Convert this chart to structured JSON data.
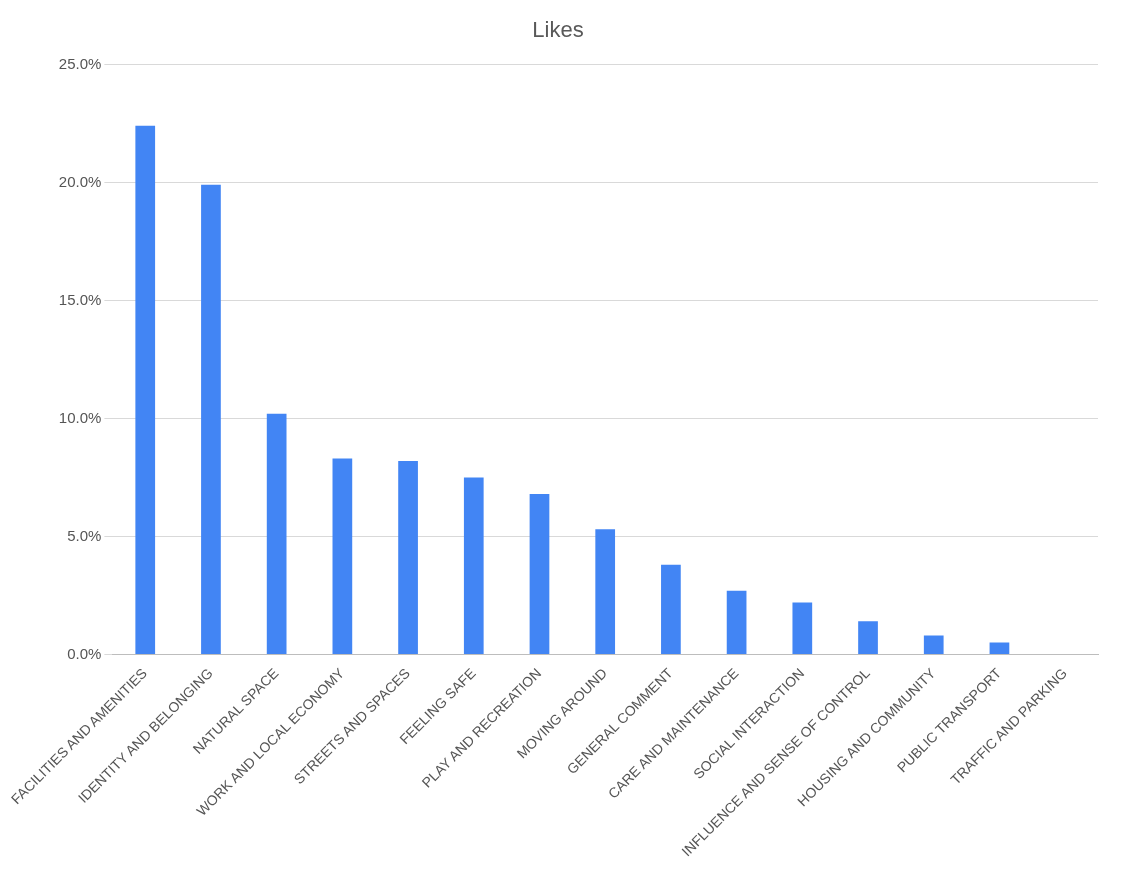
{
  "chart_data": {
    "type": "bar",
    "title": "Likes",
    "categories": [
      "FACILITIES AND AMENITIES",
      "IDENTITY AND BELONGING",
      "NATURAL SPACE",
      "WORK AND LOCAL ECONOMY",
      "STREETS AND SPACES",
      "FEELING SAFE",
      "PLAY AND RECREATION",
      "MOVING AROUND",
      "GENERAL COMMENT",
      "CARE AND MAINTENANCE",
      "SOCIAL INTERACTION",
      "INFLUENCE AND SENSE OF CONTROL",
      "HOUSING AND COMMUNITY",
      "PUBLIC TRANSPORT",
      "TRAFFIC AND PARKING"
    ],
    "values": [
      22.4,
      19.9,
      10.2,
      8.3,
      8.2,
      7.5,
      6.8,
      5.3,
      3.8,
      2.7,
      2.2,
      1.4,
      0.8,
      0.5,
      0
    ],
    "color": "#4285f4",
    "ylim": [
      0,
      25
    ],
    "yticks": [
      {
        "value": 0,
        "label": "0.0%"
      },
      {
        "value": 5,
        "label": "5.0%"
      },
      {
        "value": 10,
        "label": "10.0%"
      },
      {
        "value": 15,
        "label": "15.0%"
      },
      {
        "value": 20,
        "label": "20.0%"
      },
      {
        "value": 25,
        "label": "25.0%"
      }
    ],
    "grid": "y",
    "legend": false
  }
}
